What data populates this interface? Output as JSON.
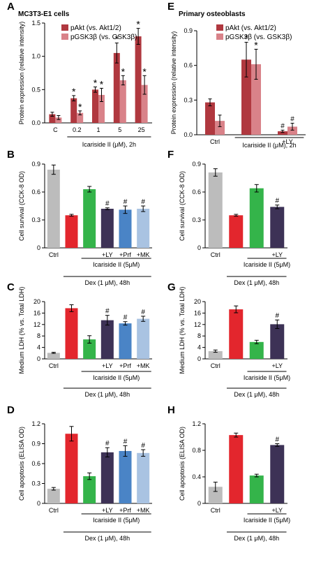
{
  "chart_data": [
    {
      "id": "A",
      "type": "bar",
      "panel_label": "A",
      "title": "MC3T3-E1 cells",
      "ylabel": "Protein expression (relative intensity)",
      "ylim": [
        0,
        1.5
      ],
      "yticks": [
        "0.0",
        "0.5",
        "1.0",
        "1.5"
      ],
      "ytick_values": [
        0,
        0.5,
        1.0,
        1.5
      ],
      "categories": [
        "C",
        "0.2",
        "1",
        "5",
        "25"
      ],
      "series": [
        {
          "name": "pAkt (vs. Akt1/2)",
          "color": "#b0383f",
          "values": [
            0.13,
            0.37,
            0.5,
            1.05,
            1.3
          ],
          "errors": [
            0.03,
            0.04,
            0.04,
            0.15,
            0.12
          ],
          "marks": [
            "",
            "*",
            "*",
            "*",
            "*"
          ]
        },
        {
          "name": "pGSK3β (vs. GSK3β)",
          "color": "#d98289",
          "values": [
            0.08,
            0.15,
            0.42,
            0.64,
            0.57
          ],
          "errors": [
            0.03,
            0.03,
            0.1,
            0.07,
            0.14
          ],
          "marks": [
            "",
            "*",
            "*",
            "*",
            "*"
          ]
        }
      ],
      "brackets": [
        {
          "label": "Icariside II (μM), 2h",
          "from": 1,
          "to": 4
        }
      ]
    },
    {
      "id": "E",
      "type": "bar",
      "panel_label": "E",
      "title": "Primary osteoblasts",
      "ylabel": "Protein expression (relative intensity)",
      "ylim": [
        0,
        0.9
      ],
      "yticks": [
        "0.0",
        "0.3",
        "0.6",
        "0.9"
      ],
      "ytick_values": [
        0,
        0.3,
        0.6,
        0.9
      ],
      "categories": [
        "Ctrl",
        "",
        "+LY"
      ],
      "series": [
        {
          "name": "pAkt (vs. Akt1/2)",
          "color": "#b0383f",
          "values": [
            0.28,
            0.65,
            0.03
          ],
          "errors": [
            0.03,
            0.15,
            0.01
          ],
          "marks": [
            "",
            "*",
            "#"
          ]
        },
        {
          "name": "pGSK3β (vs. GSK3β)",
          "color": "#d98289",
          "values": [
            0.12,
            0.61,
            0.07
          ],
          "errors": [
            0.05,
            0.13,
            0.03
          ],
          "marks": [
            "",
            "*",
            "#"
          ]
        }
      ],
      "brackets": [
        {
          "label": "Icariside II (μM), 2h",
          "from": 1,
          "to": 2
        }
      ]
    },
    {
      "id": "B",
      "type": "bar",
      "panel_label": "B",
      "ylabel": "Cell survival (CCK-8 OD)",
      "ylim": [
        0,
        0.9
      ],
      "yticks": [
        "0",
        "0.3",
        "0.6",
        "0.9"
      ],
      "ytick_values": [
        0,
        0.3,
        0.6,
        0.9
      ],
      "categories": [
        "Ctrl",
        "",
        "",
        "+LY",
        "+Prf",
        "+MK"
      ],
      "values": [
        0.84,
        0.35,
        0.63,
        0.42,
        0.41,
        0.42
      ],
      "errors": [
        0.05,
        0.01,
        0.03,
        0.01,
        0.04,
        0.03
      ],
      "colors": [
        "#bcbcbc",
        "#e3262d",
        "#34b44a",
        "#3d3256",
        "#4a84c6",
        "#a9c3e2"
      ],
      "marks": [
        "",
        "",
        "",
        "#",
        "#",
        "#"
      ],
      "brackets": [
        {
          "label": "Icariside II (5μM)",
          "from": 2,
          "to": 5
        },
        {
          "label": "Dex (1 μM), 48h",
          "from": 1,
          "to": 5
        }
      ]
    },
    {
      "id": "F",
      "type": "bar",
      "panel_label": "F",
      "ylabel": "Cell survival (CCK-8 OD)",
      "ylim": [
        0,
        0.9
      ],
      "yticks": [
        "0",
        "0.3",
        "0.6",
        "0.9"
      ],
      "ytick_values": [
        0,
        0.3,
        0.6,
        0.9
      ],
      "categories": [
        "Ctrl",
        "",
        "",
        "+LY"
      ],
      "values": [
        0.81,
        0.35,
        0.64,
        0.44
      ],
      "errors": [
        0.04,
        0.01,
        0.04,
        0.02
      ],
      "colors": [
        "#bcbcbc",
        "#e3262d",
        "#34b44a",
        "#3d3256"
      ],
      "marks": [
        "",
        "",
        "",
        "#"
      ],
      "brackets": [
        {
          "label": "Icariside II (5μM)",
          "from": 2,
          "to": 3
        },
        {
          "label": "Dex (1 μM), 48h",
          "from": 1,
          "to": 3
        }
      ]
    },
    {
      "id": "C",
      "type": "bar",
      "panel_label": "C",
      "ylabel": "Medium LDH (% vs. Total LDH)",
      "ylim": [
        0,
        20
      ],
      "yticks": [
        "0",
        "4",
        "8",
        "12",
        "16",
        "20"
      ],
      "ytick_values": [
        0,
        4,
        8,
        12,
        16,
        20
      ],
      "categories": [
        "Ctrl",
        "",
        "",
        "+LY",
        "+Prf",
        "+MK"
      ],
      "values": [
        2.1,
        17.7,
        6.8,
        13.5,
        12.4,
        14.0
      ],
      "errors": [
        0.2,
        1.2,
        1.3,
        1.7,
        0.6,
        0.9
      ],
      "colors": [
        "#bcbcbc",
        "#e3262d",
        "#34b44a",
        "#3d3256",
        "#4a84c6",
        "#a9c3e2"
      ],
      "marks": [
        "",
        "",
        "",
        "#",
        "#",
        "#"
      ],
      "brackets": [
        {
          "label": "Icariside II (5μM)",
          "from": 2,
          "to": 5
        },
        {
          "label": "Dex (1 μM), 48h",
          "from": 1,
          "to": 5
        }
      ]
    },
    {
      "id": "G",
      "type": "bar",
      "panel_label": "G",
      "ylabel": "Medium LDH (% vs. Total LDH)",
      "ylim": [
        0,
        20
      ],
      "yticks": [
        "0",
        "4",
        "8",
        "12",
        "16",
        "20"
      ],
      "ytick_values": [
        0,
        4,
        8,
        12,
        16,
        20
      ],
      "categories": [
        "Ctrl",
        "",
        "",
        "+LY"
      ],
      "values": [
        2.7,
        17.3,
        5.9,
        12.1
      ],
      "errors": [
        0.4,
        1.2,
        0.6,
        1.5
      ],
      "colors": [
        "#bcbcbc",
        "#e3262d",
        "#34b44a",
        "#3d3256"
      ],
      "marks": [
        "",
        "",
        "",
        "#"
      ],
      "brackets": [
        {
          "label": "Icariside II (5μM)",
          "from": 2,
          "to": 3
        },
        {
          "label": "Dex (1 μM), 48h",
          "from": 1,
          "to": 3
        }
      ]
    },
    {
      "id": "D",
      "type": "bar",
      "panel_label": "D",
      "ylabel": "Cell apoptosis (ELISA OD)",
      "ylim": [
        0,
        1.2
      ],
      "yticks": [
        "0",
        "0.3",
        "0.6",
        "0.9",
        "1.2"
      ],
      "ytick_values": [
        0,
        0.3,
        0.6,
        0.9,
        1.2
      ],
      "categories": [
        "Ctrl",
        "",
        "",
        "+LY",
        "+Prf",
        "+MK"
      ],
      "values": [
        0.22,
        1.05,
        0.41,
        0.77,
        0.79,
        0.76
      ],
      "errors": [
        0.02,
        0.11,
        0.05,
        0.07,
        0.08,
        0.05
      ],
      "colors": [
        "#bcbcbc",
        "#e3262d",
        "#34b44a",
        "#3d3256",
        "#4a84c6",
        "#a9c3e2"
      ],
      "marks": [
        "",
        "",
        "",
        "#",
        "#",
        "#"
      ],
      "brackets": [
        {
          "label": "Icariside II (5μM)",
          "from": 2,
          "to": 5
        },
        {
          "label": "Dex (1 μM), 48h",
          "from": 1,
          "to": 5
        }
      ]
    },
    {
      "id": "H",
      "type": "bar",
      "panel_label": "H",
      "ylabel": "Cell apoptosis (ELISA OD)",
      "ylim": [
        0,
        1.2
      ],
      "yticks": [
        "0",
        "0.4",
        "0.8",
        "1.2"
      ],
      "ytick_values": [
        0,
        0.4,
        0.8,
        1.2
      ],
      "categories": [
        "Ctrl",
        "",
        "",
        "+LY"
      ],
      "values": [
        0.25,
        1.03,
        0.42,
        0.88
      ],
      "errors": [
        0.07,
        0.03,
        0.02,
        0.02
      ],
      "colors": [
        "#bcbcbc",
        "#e3262d",
        "#34b44a",
        "#3d3256"
      ],
      "marks": [
        "",
        "",
        "",
        "#"
      ],
      "brackets": [
        {
          "label": "Icariside II (5μM)",
          "from": 2,
          "to": 3
        },
        {
          "label": "Dex (1 μM), 48h",
          "from": 1,
          "to": 3
        }
      ]
    }
  ]
}
